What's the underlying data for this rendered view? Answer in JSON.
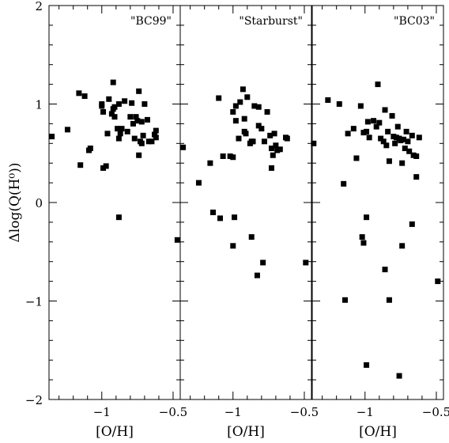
{
  "chart_data": {
    "type": "scatter",
    "y_axis": {
      "label": "Δlog(Q(H⁰))",
      "range": [
        -2,
        2
      ],
      "ticks": [
        {
          "value": 2,
          "label": "2"
        },
        {
          "value": 1,
          "label": "1"
        },
        {
          "value": 0,
          "label": "0"
        },
        {
          "value": -1,
          "label": "−1"
        },
        {
          "value": -2,
          "label": "−2"
        }
      ]
    },
    "x_axis": {
      "label": "[O/H]",
      "range": [
        -1.37,
        -0.45
      ],
      "ticks": [
        {
          "value": -1,
          "label": "−1"
        },
        {
          "value": -0.5,
          "label": "−0.5"
        }
      ]
    },
    "panels": [
      {
        "title": "\"BC99\"",
        "points": [
          [
            -1.35,
            0.67
          ],
          [
            -1.24,
            0.74
          ],
          [
            -1.16,
            1.11
          ],
          [
            -1.12,
            1.08
          ],
          [
            -1.15,
            0.38
          ],
          [
            -1.09,
            0.53
          ],
          [
            -1.08,
            0.55
          ],
          [
            -1.0,
            0.98
          ],
          [
            -1.0,
            1.0
          ],
          [
            -0.99,
            0.92
          ],
          [
            -0.99,
            0.35
          ],
          [
            -0.97,
            0.37
          ],
          [
            -0.96,
            0.7
          ],
          [
            -0.95,
            1.05
          ],
          [
            -0.93,
            0.9
          ],
          [
            -0.92,
            0.95
          ],
          [
            -0.92,
            1.22
          ],
          [
            -0.91,
            0.87
          ],
          [
            -0.91,
            0.97
          ],
          [
            -0.89,
            0.75
          ],
          [
            -0.88,
            1.0
          ],
          [
            -0.88,
            0.65
          ],
          [
            -0.87,
            0.7
          ],
          [
            -0.86,
            0.75
          ],
          [
            -0.84,
            1.03
          ],
          [
            -0.82,
            0.72
          ],
          [
            -0.8,
            0.87
          ],
          [
            -0.79,
            1.01
          ],
          [
            -0.78,
            0.8
          ],
          [
            -0.77,
            0.65
          ],
          [
            -0.76,
            0.87
          ],
          [
            -0.75,
            0.83
          ],
          [
            -0.74,
            1.13
          ],
          [
            -0.73,
            0.62
          ],
          [
            -0.72,
            0.6
          ],
          [
            -0.72,
            0.82
          ],
          [
            -0.71,
            0.68
          ],
          [
            -0.7,
            1.0
          ],
          [
            -0.68,
            0.84
          ],
          [
            -0.67,
            0.62
          ],
          [
            -0.65,
            0.62
          ],
          [
            -0.63,
            0.69
          ],
          [
            -0.62,
            0.73
          ],
          [
            -0.62,
            0.66
          ],
          [
            -0.74,
            0.48
          ],
          [
            -0.88,
            -0.15
          ],
          [
            -0.47,
            -0.38
          ]
        ]
      },
      {
        "title": "\"Starburst\"",
        "points": [
          [
            -1.35,
            0.56
          ],
          [
            -1.24,
            0.2
          ],
          [
            -1.16,
            0.4
          ],
          [
            -1.1,
            1.06
          ],
          [
            -1.07,
            0.47
          ],
          [
            -1.02,
            0.47
          ],
          [
            -1.0,
            0.46
          ],
          [
            -1.0,
            0.92
          ],
          [
            -0.98,
            0.83
          ],
          [
            -0.98,
            0.98
          ],
          [
            -0.96,
            0.65
          ],
          [
            -0.95,
            1.02
          ],
          [
            -0.93,
            1.15
          ],
          [
            -0.92,
            0.85
          ],
          [
            -0.92,
            0.72
          ],
          [
            -0.91,
            0.7
          ],
          [
            -0.9,
            1.07
          ],
          [
            -0.88,
            0.6
          ],
          [
            -0.87,
            0.62
          ],
          [
            -0.86,
            0.62
          ],
          [
            -0.85,
            0.98
          ],
          [
            -0.82,
            0.78
          ],
          [
            -0.82,
            0.97
          ],
          [
            -0.8,
            0.75
          ],
          [
            -0.78,
            0.62
          ],
          [
            -0.76,
            0.92
          ],
          [
            -0.74,
            0.68
          ],
          [
            -0.73,
            0.55
          ],
          [
            -0.72,
            0.48
          ],
          [
            -0.71,
            0.7
          ],
          [
            -0.7,
            0.58
          ],
          [
            -0.69,
            0.53
          ],
          [
            -0.67,
            0.54
          ],
          [
            -0.63,
            0.66
          ],
          [
            -0.62,
            0.65
          ],
          [
            -0.73,
            0.35
          ],
          [
            -1.14,
            -0.1
          ],
          [
            -1.09,
            -0.16
          ],
          [
            -0.99,
            -0.15
          ],
          [
            -1.0,
            -0.44
          ],
          [
            -0.87,
            -0.35
          ],
          [
            -0.79,
            -0.61
          ],
          [
            -0.83,
            -0.74
          ],
          [
            -0.49,
            -0.61
          ]
        ]
      },
      {
        "title": "\"BC03\"",
        "points": [
          [
            -1.36,
            0.6
          ],
          [
            -1.26,
            1.04
          ],
          [
            -1.18,
            1.0
          ],
          [
            -1.12,
            0.7
          ],
          [
            -1.08,
            0.75
          ],
          [
            -1.06,
            0.45
          ],
          [
            -1.03,
            0.98
          ],
          [
            -1.01,
            0.71
          ],
          [
            -0.99,
            0.72
          ],
          [
            -0.98,
            0.82
          ],
          [
            -0.97,
            0.66
          ],
          [
            -0.94,
            0.83
          ],
          [
            -0.92,
            0.77
          ],
          [
            -0.91,
            1.2
          ],
          [
            -0.9,
            0.81
          ],
          [
            -0.89,
            0.65
          ],
          [
            -0.87,
            0.62
          ],
          [
            -0.86,
            0.94
          ],
          [
            -0.85,
            0.58
          ],
          [
            -0.84,
            0.72
          ],
          [
            -0.81,
            0.88
          ],
          [
            -0.8,
            0.67
          ],
          [
            -0.79,
            0.6
          ],
          [
            -0.78,
            0.66
          ],
          [
            -0.77,
            0.77
          ],
          [
            -0.76,
            0.65
          ],
          [
            -0.75,
            0.63
          ],
          [
            -0.73,
            0.64
          ],
          [
            -0.72,
            0.55
          ],
          [
            -0.71,
            0.72
          ],
          [
            -0.7,
            0.62
          ],
          [
            -0.69,
            0.52
          ],
          [
            -0.67,
            0.68
          ],
          [
            -0.66,
            0.48
          ],
          [
            -0.64,
            0.47
          ],
          [
            -0.62,
            0.66
          ],
          [
            -0.74,
            0.4
          ],
          [
            -0.83,
            0.42
          ],
          [
            -0.64,
            0.26
          ],
          [
            -1.15,
            0.19
          ],
          [
            -1.02,
            -0.35
          ],
          [
            -1.01,
            -0.41
          ],
          [
            -0.99,
            -0.15
          ],
          [
            -0.86,
            -0.68
          ],
          [
            -0.83,
            -0.99
          ],
          [
            -0.74,
            -0.44
          ],
          [
            -0.67,
            -0.22
          ],
          [
            -0.49,
            -0.8
          ],
          [
            -1.14,
            -0.99
          ],
          [
            -0.99,
            -1.65
          ],
          [
            -0.76,
            -1.76
          ]
        ]
      }
    ]
  }
}
